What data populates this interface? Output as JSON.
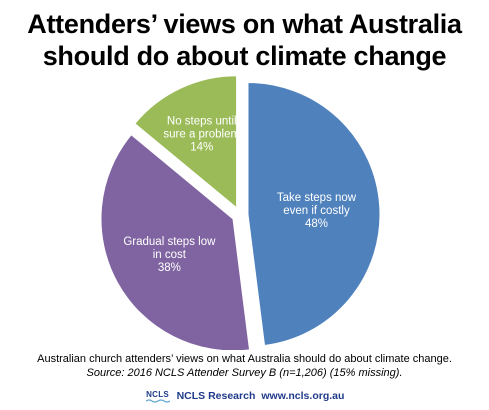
{
  "title_line1": "Attenders’ views on what Australia",
  "title_line2": "should do about climate change",
  "chart_data": {
    "type": "pie",
    "title": "Attenders’ views on what Australia should do about climate change",
    "slices": [
      {
        "label_lines": [
          "Take steps now",
          "even if costly"
        ],
        "value": 48,
        "value_label": "48%",
        "color": "#4f81bd"
      },
      {
        "label_lines": [
          "Gradual steps low",
          "in cost"
        ],
        "value": 38,
        "value_label": "38%",
        "color": "#8064a2"
      },
      {
        "label_lines": [
          "No steps until",
          "sure a problem"
        ],
        "value": 14,
        "value_label": "14%",
        "color": "#9bbb59"
      }
    ],
    "start": "top",
    "direction": "clockwise",
    "legend": "none",
    "exploded": true
  },
  "caption": "Australian church attenders’ views on what Australia should do about climate change.",
  "source": "Source: 2016 NCLS Attender Survey B (n=1,206) (15% missing).",
  "footer": {
    "logo_text": "NCLS",
    "org": "NCLS Research",
    "url": "www.ncls.org.au",
    "icon": "ncls-logo-icon",
    "color": "#1f3a8a"
  }
}
